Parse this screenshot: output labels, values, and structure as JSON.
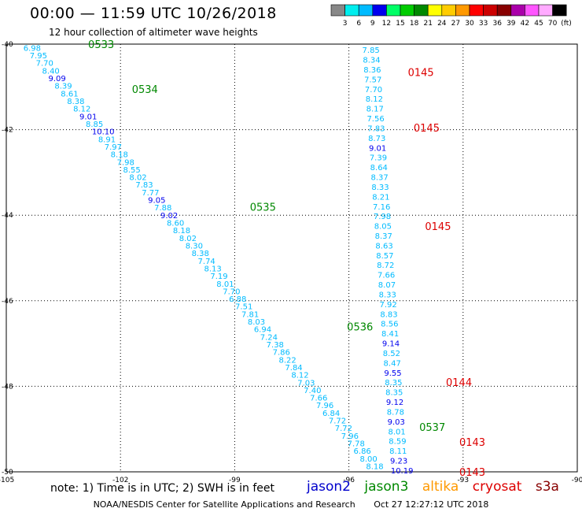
{
  "header": {
    "title": "00:00 — 11:59 UTC 10/26/2018",
    "subtitle": "12 hour collection of altimeter wave heights"
  },
  "footer": {
    "note": "note: 1) Time is in UTC; 2) SWH is in feet",
    "credit": "NOAA/NESDIS Center for Satellite Applications and Research",
    "timestamp": "Oct 27 12:27:12 UTC 2018"
  },
  "satellites": [
    {
      "name": "jason2",
      "color": "#0000cc"
    },
    {
      "name": "jason3",
      "color": "#008800"
    },
    {
      "name": "altika",
      "color": "#ff9900"
    },
    {
      "name": "cryosat",
      "color": "#dd0000"
    },
    {
      "name": "s3a",
      "color": "#880000"
    }
  ],
  "colorbar": {
    "unit": "(ft)",
    "colors": [
      "#888888",
      "#00eeee",
      "#00bbff",
      "#0000ee",
      "#00ff66",
      "#00cc00",
      "#008800",
      "#ffff00",
      "#ffcc00",
      "#ff9900",
      "#ff0000",
      "#cc0000",
      "#880000",
      "#aa00aa",
      "#ff55ff",
      "#ffaaff",
      "#000000"
    ],
    "tick_labels": [
      "3",
      "6",
      "9",
      "12",
      "15",
      "18",
      "21",
      "24",
      "27",
      "30",
      "33",
      "36",
      "39",
      "42",
      "45",
      "70"
    ]
  },
  "chart_data": {
    "type": "scatter",
    "title": "00:00 — 11:59 UTC 10/26/2018",
    "subtitle": "12 hour collection of altimeter wave heights",
    "xlim": [
      -105,
      -90
    ],
    "ylim": [
      -50,
      -40
    ],
    "x_ticks": [
      "-105",
      "-102",
      "-99",
      "-96",
      "-93",
      "-90"
    ],
    "y_ticks": [
      "-40",
      "-42",
      "-44",
      "-46",
      "-48",
      "-50"
    ],
    "grid": true,
    "swh_color_key": {
      "lt9": "#00bbff",
      "9to12": "#0000ee",
      "12to15": "#00ff66"
    },
    "series": [
      {
        "satellite": "jason3",
        "label_color": "#008800",
        "swh": [
          6.98,
          7.95,
          7.7,
          8.4,
          9.09,
          8.39,
          8.61,
          8.38,
          8.12,
          9.01,
          8.85,
          10.1,
          8.91,
          7.97,
          8.18,
          7.98,
          8.55,
          8.02,
          7.83,
          7.77,
          9.05,
          7.88,
          9.02,
          8.6,
          8.18,
          8.02,
          8.3,
          8.38,
          7.74,
          8.13,
          7.19,
          8.01,
          7.7,
          6.88,
          7.51,
          7.81,
          8.03,
          6.94,
          7.24,
          7.38,
          7.86,
          8.22,
          7.84,
          8.12,
          7.03,
          7.4,
          7.66,
          7.96,
          6.84,
          7.72,
          7.72,
          7.96,
          7.78,
          6.86,
          8.0,
          8.18
        ],
        "times": [
          {
            "text": "0533",
            "lon": -102.85,
            "lat": -40.0
          },
          {
            "text": "0534",
            "lon": -101.7,
            "lat": -41.05
          },
          {
            "text": "0535",
            "lon": -98.6,
            "lat": -43.8
          },
          {
            "text": "0536",
            "lon": -96.05,
            "lat": -46.6
          },
          {
            "text": "0537",
            "lon": -94.15,
            "lat": -48.95
          }
        ]
      },
      {
        "satellite": "cryosat",
        "label_color": "#dd0000",
        "swh": [
          7.85,
          8.34,
          8.36,
          7.57,
          7.7,
          8.12,
          8.17,
          7.56,
          7.83,
          8.73,
          9.01,
          7.39,
          8.64,
          8.37,
          8.33,
          8.21,
          7.16,
          7.98,
          8.05,
          8.37,
          8.63,
          8.57,
          8.72,
          7.66,
          8.07,
          8.33,
          7.92,
          8.83,
          8.56,
          8.41,
          9.14,
          8.52,
          8.47,
          9.55,
          8.35,
          8.35,
          9.12,
          8.78,
          9.03,
          8.01,
          8.59,
          8.11,
          9.23,
          10.19
        ],
        "times": [
          {
            "text": "0145",
            "lon": -94.45,
            "lat": -40.65
          },
          {
            "text": "0145",
            "lon": -94.3,
            "lat": -41.95
          },
          {
            "text": "0145",
            "lon": -94.0,
            "lat": -44.25
          },
          {
            "text": "0144",
            "lon": -93.45,
            "lat": -47.9
          },
          {
            "text": "0143",
            "lon": -93.1,
            "lat": -49.3
          },
          {
            "text": "0143",
            "lon": -93.1,
            "lat": -50.0
          }
        ]
      }
    ]
  }
}
